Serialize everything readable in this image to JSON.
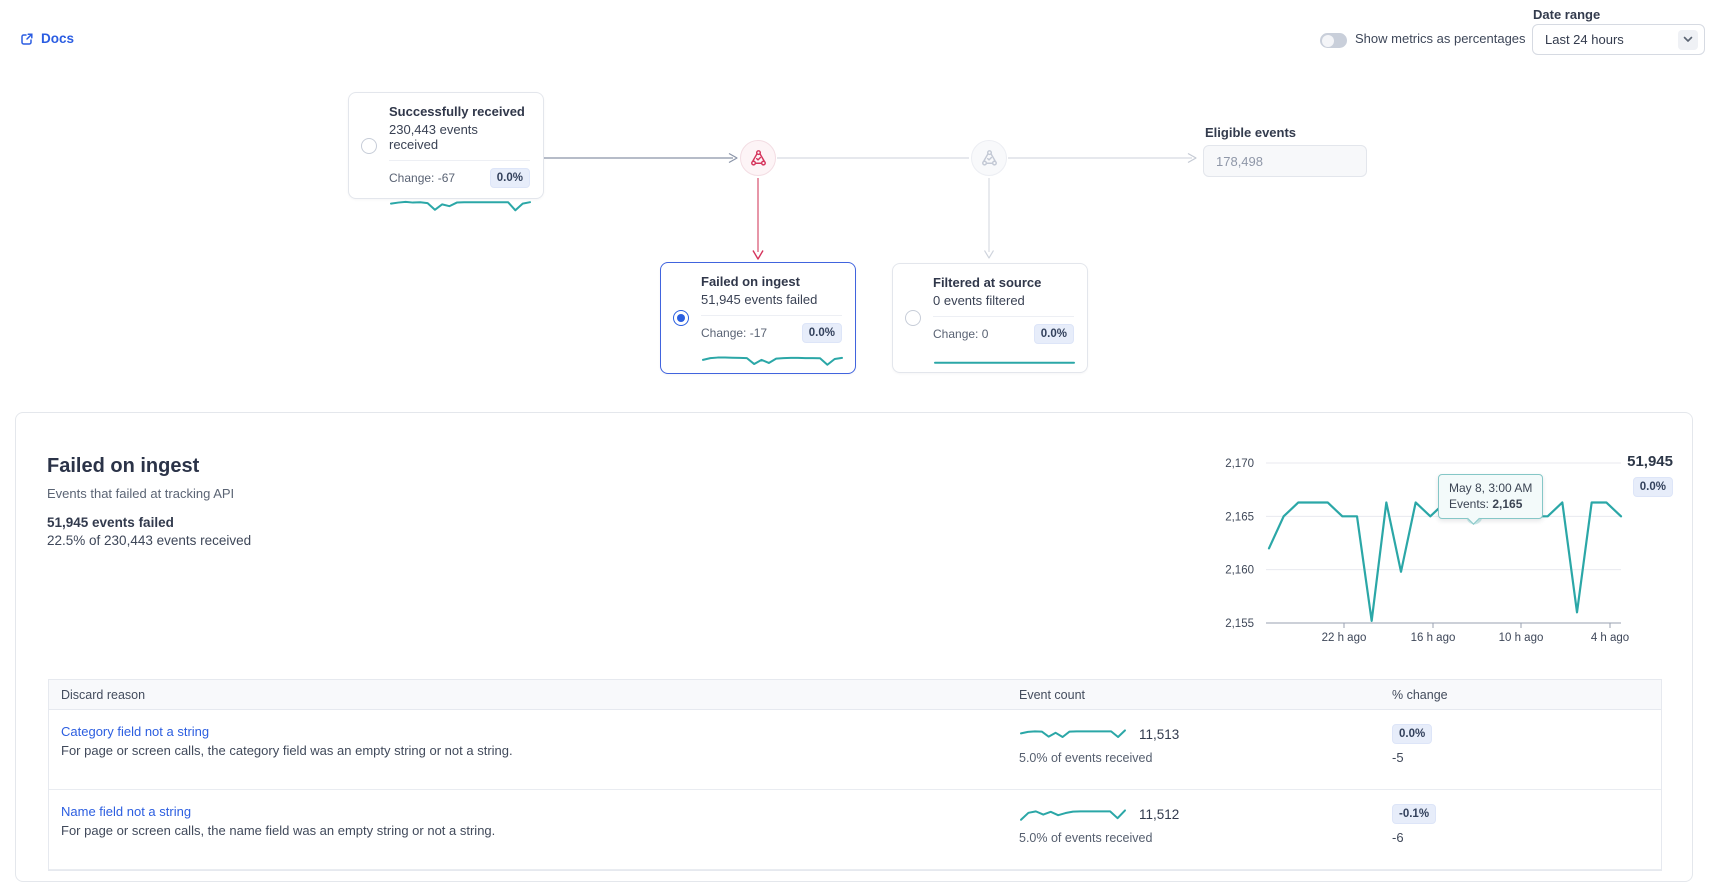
{
  "topbar": {
    "docs_label": "Docs",
    "metrics_toggle_label": "Show metrics as percentages",
    "toggle_state": "off",
    "date_range_label": "Date range",
    "date_range_value": "Last 24 hours"
  },
  "pipeline": {
    "received": {
      "title": "Successfully received",
      "subtitle": "230,443 events received",
      "change": "Change: -67",
      "badge": "0.0%",
      "selected": false,
      "spark": [
        0.52,
        0.58,
        0.62,
        0.58,
        0.6,
        0.55,
        0.18,
        0.48,
        0.38,
        0.58,
        0.6,
        0.6,
        0.6,
        0.6,
        0.6,
        0.6,
        0.6,
        0.15,
        0.52,
        0.6
      ]
    },
    "failed": {
      "title": "Failed on ingest",
      "subtitle": "51,945 events failed",
      "change": "Change: -17",
      "badge": "0.0%",
      "selected": true,
      "spark": [
        0.45,
        0.55,
        0.58,
        0.58,
        0.57,
        0.56,
        0.55,
        0.22,
        0.45,
        0.28,
        0.52,
        0.55,
        0.56,
        0.56,
        0.55,
        0.55,
        0.54,
        0.18,
        0.5,
        0.56
      ]
    },
    "filtered": {
      "title": "Filtered at source",
      "subtitle": "0 events filtered",
      "change": "Change: 0",
      "badge": "0.0%",
      "selected": false,
      "spark": [
        0.35,
        0.35,
        0.35,
        0.35,
        0.35,
        0.35,
        0.35,
        0.35,
        0.35,
        0.35,
        0.35,
        0.35
      ]
    },
    "eligible_label": "Eligible events",
    "eligible_value": "178,498"
  },
  "detail": {
    "title": "Failed on ingest",
    "subtitle": "Events that failed at tracking API",
    "stat_primary": "51,945 events failed",
    "stat_secondary": "22.5% of 230,443 events received",
    "total": "51,945",
    "total_badge": "0.0%",
    "tooltip_date": "May 8, 3:00 AM",
    "tooltip_label": "Events:",
    "tooltip_value": "2,165"
  },
  "chart_data": {
    "type": "line",
    "title": "Failed on ingest — hourly event counts",
    "x_unit": "hours ago (most recent at right)",
    "x": [
      24,
      23,
      22,
      21,
      20,
      19,
      18,
      17,
      16,
      15,
      14,
      13,
      12,
      11,
      10,
      9,
      8,
      7,
      6,
      5,
      4,
      3,
      2,
      1,
      0
    ],
    "values": [
      2162,
      2165,
      2166.3,
      2166.3,
      2166.3,
      2165,
      2165,
      2155.2,
      2166.3,
      2159.8,
      2166.3,
      2165,
      2166.3,
      2166.3,
      2165,
      2166.3,
      2165,
      2166.3,
      2165,
      2165,
      2166.3,
      2156,
      2166.3,
      2166.3,
      2165
    ],
    "ylim": [
      2155,
      2170
    ],
    "yticks": [
      2170,
      2165,
      2160,
      2155
    ],
    "ytick_labels": [
      "2,170",
      "2,165",
      "2,160",
      "2,155"
    ],
    "xtick_labels": [
      "22 h ago",
      "16 h ago",
      "10 h ago",
      "4 h ago"
    ],
    "marker_index": 14,
    "marker_value": "2,165",
    "grid": true,
    "legend": "none"
  },
  "table": {
    "columns": [
      "Discard reason",
      "Event count",
      "% change"
    ],
    "rows": [
      {
        "reason": "Category field not a string",
        "description": "For page or screen calls, the category field was an empty string or not a string.",
        "count": "11,513",
        "share": "5.0% of events received",
        "pct_badge": "0.0%",
        "delta": "-5",
        "spark": [
          0.55,
          0.68,
          0.72,
          0.7,
          0.28,
          0.6,
          0.25,
          0.7,
          0.72,
          0.72,
          0.72,
          0.72,
          0.72,
          0.72,
          0.25,
          0.8
        ]
      },
      {
        "reason": "Name field not a string",
        "description": "For page or screen calls, the name field was an empty string or not a string.",
        "count": "11,512",
        "share": "5.0% of events received",
        "pct_badge": "-0.1%",
        "delta": "-6",
        "spark": [
          0.02,
          0.6,
          0.72,
          0.45,
          0.68,
          0.4,
          0.58,
          0.7,
          0.72,
          0.72,
          0.72,
          0.72,
          0.72,
          0.15,
          0.8
        ]
      }
    ]
  },
  "colors": {
    "teal": "#2ba7a7",
    "red": "#d5345c",
    "red_soft": "#dd6a82",
    "blue_link": "#2b5de2",
    "selected_border": "#4164de",
    "badge_bg": "#e7edfa",
    "badge_text": "#33415c",
    "connector_dark": "#8a94a8",
    "connector_light": "#d8dbe2",
    "grid_line": "#e8eaef",
    "axis_line": "#9aa2b2"
  }
}
